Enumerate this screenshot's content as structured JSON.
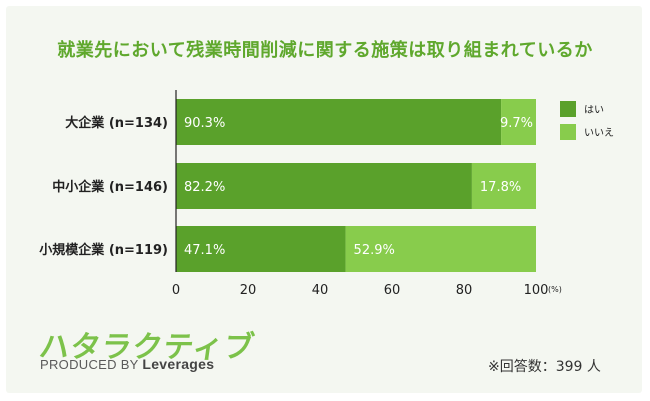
{
  "title": "就業先において残業時間削減に関する施策は取り組まれているか",
  "logo_text": "ハタラクティブ",
  "produced_by_prefix": "PRODUCED BY",
  "produced_by_brand": "Leverages",
  "note": "※回答数：399 人",
  "colors": {
    "yes": "#5aa12b",
    "no": "#88cc4c",
    "title": "#5fa82d",
    "background": "#f4f7f1"
  },
  "chart_data": {
    "type": "bar",
    "orientation": "horizontal",
    "stacked": true,
    "title": "就業先において残業時間削減に関する施策は取り組まれているか",
    "categories": [
      "大企業 (n=134)",
      "中小企業 (n=146)",
      "小規模企業 (n=119)"
    ],
    "series": [
      {
        "name": "はい",
        "values": [
          90.3,
          82.2,
          47.1
        ],
        "labels": [
          "90.3%",
          "82.2%",
          "47.1%"
        ],
        "color": "#5aa12b"
      },
      {
        "name": "いいえ",
        "values": [
          9.7,
          17.8,
          52.9
        ],
        "labels": [
          "9.7%",
          "17.8%",
          "52.9%"
        ],
        "color": "#88cc4c"
      }
    ],
    "xlim": [
      0,
      100
    ],
    "xticks": [
      "0",
      "20",
      "40",
      "60",
      "80",
      "100"
    ],
    "x_unit": "(%)",
    "legend_position": "right",
    "grid": false
  }
}
